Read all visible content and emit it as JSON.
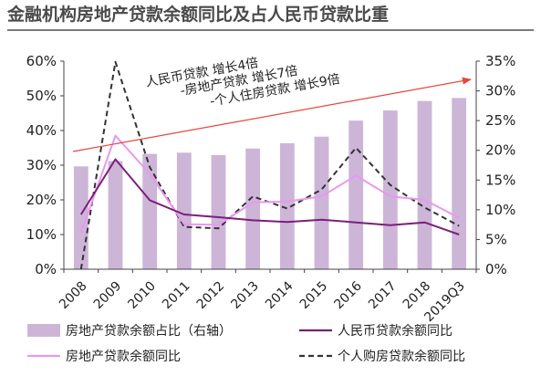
{
  "page": {
    "title": "金融机构房地产贷款余额同比及占人民币贷款比重"
  },
  "chart_data": {
    "type": "bar",
    "categories": [
      "2008",
      "2009",
      "2010",
      "2011",
      "2012",
      "2013",
      "2014",
      "2015",
      "2016",
      "2017",
      "2018",
      "2019Q3"
    ],
    "left_axis": {
      "ylim": [
        0,
        60
      ],
      "ticks": [
        "0%",
        "10%",
        "20%",
        "30%",
        "40%",
        "50%",
        "60%"
      ],
      "tick_values": [
        0,
        10,
        20,
        30,
        40,
        50,
        60
      ]
    },
    "right_axis": {
      "ylim": [
        0,
        35
      ],
      "ticks": [
        "0%",
        "5%",
        "10%",
        "15%",
        "20%",
        "25%",
        "30%",
        "35%"
      ],
      "tick_values": [
        0,
        5,
        10,
        15,
        20,
        25,
        30,
        35
      ]
    },
    "series": [
      {
        "name": "房地产贷款余额占比（右轴）",
        "type": "bar",
        "axis": "right",
        "color": "#cdb5d8",
        "values": [
          17.3,
          18.2,
          19.4,
          19.6,
          19.2,
          20.3,
          21.2,
          22.3,
          25.0,
          26.7,
          28.3,
          28.8
        ]
      },
      {
        "name": "人民币贷款余额同比",
        "type": "line",
        "axis": "left",
        "color": "#7a1f7a",
        "dash": "solid",
        "values": [
          15.8,
          31.7,
          19.9,
          15.8,
          15.0,
          14.1,
          13.6,
          14.3,
          13.5,
          12.7,
          13.5,
          10.0
        ]
      },
      {
        "name": "房地产贷款余额同比",
        "type": "line",
        "axis": "left",
        "color": "#e898f0",
        "dash": "solid",
        "values": [
          10.5,
          38.5,
          27.5,
          13.0,
          12.8,
          19.3,
          19.5,
          21.0,
          27.0,
          21.0,
          20.0,
          14.8
        ]
      },
      {
        "name": "个人购房贷款余额同比",
        "type": "line",
        "axis": "left",
        "color": "#333333",
        "dash": "dashed",
        "values": [
          0.0,
          59.8,
          29.4,
          12.2,
          11.8,
          21.0,
          17.5,
          23.0,
          35.0,
          24.3,
          17.8,
          12.5
        ]
      }
    ],
    "annotations": [
      "人民币贷款 增长4倍",
      "-房地产贷款 增长7倍",
      "-个人住房贷款 增长9倍"
    ],
    "trend_arrow_color": "#e8453c",
    "legend_position": "bottom",
    "grid": false
  }
}
